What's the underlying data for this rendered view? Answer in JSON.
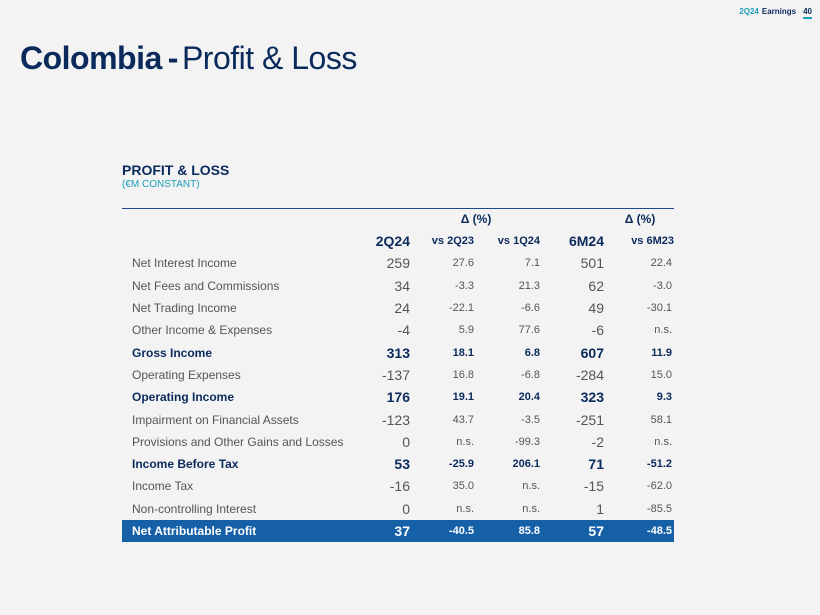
{
  "header": {
    "quarter": "2Q24",
    "label": "Earnings",
    "page": "40"
  },
  "title": {
    "country": "Colombia",
    "separator": "-",
    "subject": "Profit & Loss"
  },
  "section": {
    "title": "PROFIT & LOSS",
    "subtitle": "(€M CONSTANT)"
  },
  "table": {
    "delta_label_1": "Δ (%)",
    "delta_label_2": "Δ (%)",
    "columns": [
      "2Q24",
      "vs 2Q23",
      "vs 1Q24",
      "6M24",
      "vs 6M23"
    ],
    "rows": [
      {
        "label": "Net Interest Income",
        "v": [
          "259",
          "27.6",
          "7.1",
          "501",
          "22.4"
        ]
      },
      {
        "label": "Net Fees and Commissions",
        "v": [
          "34",
          "-3.3",
          "21.3",
          "62",
          "-3.0"
        ]
      },
      {
        "label": "Net Trading Income",
        "v": [
          "24",
          "-22.1",
          "-6.6",
          "49",
          "-30.1"
        ]
      },
      {
        "label": "Other Income & Expenses",
        "v": [
          "-4",
          "5.9",
          "77.6",
          "-6",
          "n.s."
        ]
      },
      {
        "label": "Gross Income",
        "v": [
          "313",
          "18.1",
          "6.8",
          "607",
          "11.9"
        ]
      },
      {
        "label": "Operating Expenses",
        "v": [
          "-137",
          "16.8",
          "-6.8",
          "-284",
          "15.0"
        ]
      },
      {
        "label": "Operating Income",
        "v": [
          "176",
          "19.1",
          "20.4",
          "323",
          "9.3"
        ]
      },
      {
        "label": "Impairment on Financial Assets",
        "v": [
          "-123",
          "43.7",
          "-3.5",
          "-251",
          "58.1"
        ]
      },
      {
        "label": "Provisions and Other Gains and Losses",
        "v": [
          "0",
          "n.s.",
          "-99.3",
          "-2",
          "n.s."
        ]
      },
      {
        "label": "Income Before Tax",
        "v": [
          "53",
          "-25.9",
          "206.1",
          "71",
          "-51.2"
        ]
      },
      {
        "label": "Income Tax",
        "v": [
          "-16",
          "35.0",
          "n.s.",
          "-15",
          "-62.0"
        ]
      },
      {
        "label": "Non-controlling Interest",
        "v": [
          "0",
          "n.s.",
          "n.s.",
          "1",
          "-85.5"
        ]
      },
      {
        "label": "Net Attributable Profit",
        "v": [
          "37",
          "-40.5",
          "85.8",
          "57",
          "-48.5"
        ]
      }
    ]
  }
}
